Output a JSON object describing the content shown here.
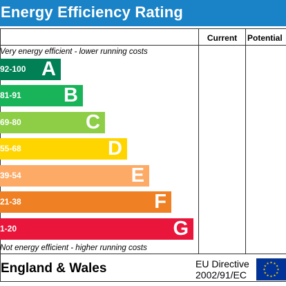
{
  "header": {
    "title": "Energy Efficiency Rating"
  },
  "columns": {
    "current": "Current",
    "potential": "Potential"
  },
  "notes": {
    "top": "Very energy efficient - lower running costs",
    "bottom": "Not energy efficient - higher running costs"
  },
  "chart_data": {
    "type": "bar",
    "title": "Energy Efficiency Rating",
    "bands": [
      {
        "range": "92-100",
        "letter": "A",
        "color": "#008054"
      },
      {
        "range": "81-91",
        "letter": "B",
        "color": "#19b459"
      },
      {
        "range": "69-80",
        "letter": "C",
        "color": "#8dce46"
      },
      {
        "range": "55-68",
        "letter": "D",
        "color": "#ffd500"
      },
      {
        "range": "39-54",
        "letter": "E",
        "color": "#fcaa65"
      },
      {
        "range": "21-38",
        "letter": "F",
        "color": "#ef8023"
      },
      {
        "range": "1-20",
        "letter": "G",
        "color": "#e9153b"
      }
    ],
    "current_rating": null,
    "potential_rating": null
  },
  "footer": {
    "region": "England & Wales",
    "directive_line1": "EU Directive",
    "directive_line2": "2002/91/EC",
    "flag_icon": "eu-flag-icon"
  },
  "colors": {
    "header": "#1a82c6",
    "flag_blue": "#003399",
    "flag_star": "#ffcc00"
  }
}
